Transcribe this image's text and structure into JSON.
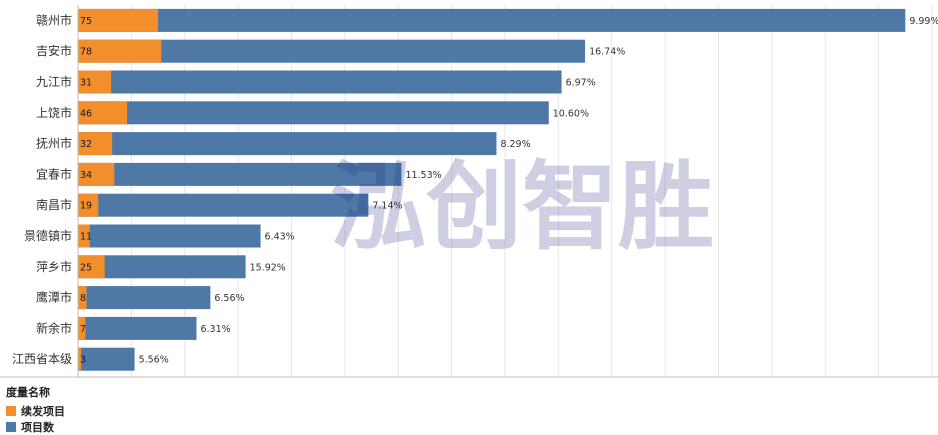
{
  "chart_data": {
    "type": "bar",
    "orientation": "horizontal",
    "stacked": false,
    "categories": [
      "赣州市",
      "吉安市",
      "九江市",
      "上饶市",
      "抚州市",
      "宜春市",
      "南昌市",
      "景德镇市",
      "萍乡市",
      "鹰潭市",
      "新余市",
      "江西省本级"
    ],
    "series": [
      {
        "name": "续发项目",
        "color": "#f28e2b",
        "values": [
          75,
          78,
          31,
          46,
          32,
          34,
          19,
          11,
          25,
          8,
          7,
          3
        ]
      },
      {
        "name": "项目数",
        "color": "#4e79a7",
        "values": [
          775,
          475,
          453,
          441,
          392,
          303,
          272,
          171,
          157,
          124,
          111,
          53
        ]
      }
    ],
    "percent_labels": [
      "9.99%",
      "16.74%",
      "6.97%",
      "10.60%",
      "8.29%",
      "11.53%",
      "7.14%",
      "6.43%",
      "15.92%",
      "6.56%",
      "6.31%",
      "5.56%"
    ],
    "xlim": [
      0,
      800
    ],
    "grid": true,
    "legend": {
      "title": "度量名称",
      "position": "bottom-left"
    }
  },
  "watermark": "泓创智胜"
}
